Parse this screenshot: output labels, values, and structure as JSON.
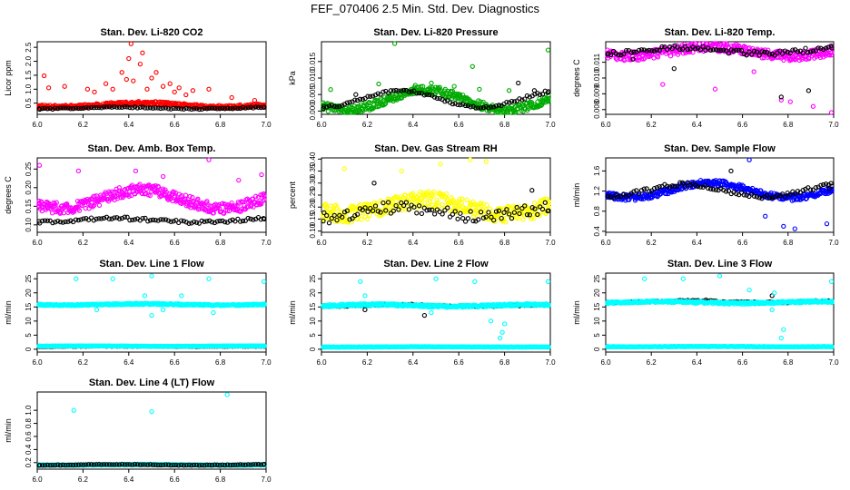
{
  "title": "FEF_070406  2.5 Min. Std. Dev. Diagnostics",
  "chart_data": [
    {
      "id": "co2",
      "type": "scatter",
      "title": "Stan. Dev. Li-820 CO2",
      "ylabel": "Licor ppm",
      "xlim": [
        6.0,
        7.0
      ],
      "ylim": [
        0.1,
        2.7
      ],
      "xticks": [
        6.0,
        6.2,
        6.4,
        6.6,
        6.8,
        7.0
      ],
      "yticks": [
        0.5,
        1.0,
        1.5,
        2.0,
        2.5
      ],
      "ytick_labels": [
        "0.5",
        "1.0",
        "1.5",
        "2.0",
        "2.5"
      ],
      "series": [
        {
          "name": "all",
          "color": "#ff0000",
          "base": 0.42,
          "amp": 0.07,
          "noise": 0.12,
          "spikes": [
            [
              6.03,
              1.48
            ],
            [
              6.05,
              1.05
            ],
            [
              6.12,
              1.1
            ],
            [
              6.22,
              1.0
            ],
            [
              6.25,
              0.9
            ],
            [
              6.3,
              1.2
            ],
            [
              6.33,
              1.0
            ],
            [
              6.37,
              1.6
            ],
            [
              6.39,
              1.35
            ],
            [
              6.4,
              2.1
            ],
            [
              6.41,
              2.63
            ],
            [
              6.42,
              1.3
            ],
            [
              6.45,
              1.9
            ],
            [
              6.46,
              2.3
            ],
            [
              6.48,
              1.0
            ],
            [
              6.5,
              1.4
            ],
            [
              6.52,
              1.6
            ],
            [
              6.55,
              1.1
            ],
            [
              6.58,
              1.2
            ],
            [
              6.6,
              0.9
            ],
            [
              6.62,
              1.05
            ],
            [
              6.65,
              0.8
            ],
            [
              6.68,
              0.95
            ],
            [
              6.75,
              1.0
            ],
            [
              6.85,
              0.7
            ],
            [
              6.95,
              0.6
            ]
          ]
        },
        {
          "name": "sel",
          "color": "#000000",
          "base": 0.32,
          "amp": 0.03,
          "noise": 0.04,
          "spikes": []
        }
      ]
    },
    {
      "id": "pres",
      "type": "scatter",
      "title": "Stan. Dev. Li-820 Pressure",
      "ylabel": "kPa",
      "xlim": [
        6.0,
        7.0
      ],
      "ylim": [
        -0.001,
        0.021
      ],
      "xticks": [
        6.0,
        6.2,
        6.4,
        6.6,
        6.8,
        7.0
      ],
      "yticks": [
        0.0,
        0.005,
        0.01,
        0.015
      ],
      "ytick_labels": [
        "0.000",
        "0.005",
        "0.010",
        "0.015"
      ],
      "series": [
        {
          "name": "all",
          "color": "#00aa00",
          "base": 0.003,
          "amp": 0.003,
          "noise": 0.0025,
          "spikes": [
            [
              6.32,
              0.0205
            ],
            [
              6.99,
              0.0185
            ],
            [
              6.66,
              0.0135
            ],
            [
              6.48,
              0.0085
            ],
            [
              6.25,
              0.0082
            ],
            [
              6.41,
              0.0078
            ],
            [
              6.04,
              0.0065
            ],
            [
              6.69,
              0.0066
            ],
            [
              6.82,
              0.0062
            ],
            [
              6.58,
              0.0075
            ]
          ]
        },
        {
          "name": "sel",
          "color": "#000000",
          "base": 0.0035,
          "amp": 0.0025,
          "noise": 0.0008,
          "spikes": [
            [
              6.86,
              0.0085
            ],
            [
              6.93,
              0.0062
            ],
            [
              6.15,
              0.005
            ]
          ]
        }
      ]
    },
    {
      "id": "temp",
      "type": "scatter",
      "title": "Stan. Dev. Li-820 Temp.",
      "ylabel": "degrees C",
      "xlim": [
        6.0,
        7.0
      ],
      "ylim": [
        0.0077,
        0.0123
      ],
      "xticks": [
        6.0,
        6.2,
        6.4,
        6.6,
        6.8,
        7.0
      ],
      "yticks": [
        0.008,
        0.009,
        0.01,
        0.011
      ],
      "ytick_labels": [
        "0.008",
        "0.009",
        "0.010",
        "0.011"
      ],
      "series": [
        {
          "name": "all",
          "color": "#ff00ff",
          "base": 0.0116,
          "amp": 0.0003,
          "noise": 0.0006,
          "spikes": [
            [
              6.99,
              0.0078
            ],
            [
              6.77,
              0.0086
            ],
            [
              6.81,
              0.0085
            ],
            [
              6.25,
              0.0096
            ],
            [
              6.48,
              0.0093
            ],
            [
              6.65,
              0.0104
            ],
            [
              6.91,
              0.0082
            ]
          ]
        },
        {
          "name": "sel",
          "color": "#000000",
          "base": 0.0117,
          "amp": 0.0002,
          "noise": 0.0003,
          "spikes": [
            [
              6.77,
              0.0088
            ],
            [
              6.89,
              0.0092
            ],
            [
              6.3,
              0.0106
            ],
            [
              6.12,
              0.0112
            ]
          ]
        }
      ]
    },
    {
      "id": "box",
      "type": "scatter",
      "title": "Stan. Dev. Amb. Box Temp.",
      "ylabel": "degrees C",
      "xlim": [
        6.0,
        7.0
      ],
      "ylim": [
        0.08,
        0.28
      ],
      "xticks": [
        6.0,
        6.2,
        6.4,
        6.6,
        6.8,
        7.0
      ],
      "yticks": [
        0.1,
        0.15,
        0.2,
        0.25
      ],
      "ytick_labels": [
        "0.10",
        "0.15",
        "0.20",
        "0.25"
      ],
      "series": [
        {
          "name": "all",
          "color": "#ff00ff",
          "base": 0.165,
          "amp": 0.025,
          "noise": 0.03,
          "spikes": [
            [
              6.75,
              0.275
            ],
            [
              6.01,
              0.26
            ],
            [
              6.18,
              0.245
            ],
            [
              6.43,
              0.245
            ],
            [
              6.55,
              0.23
            ],
            [
              6.88,
              0.22
            ],
            [
              6.98,
              0.235
            ]
          ]
        },
        {
          "name": "sel",
          "color": "#000000",
          "base": 0.111,
          "amp": 0.005,
          "noise": 0.008,
          "spikes": []
        }
      ]
    },
    {
      "id": "rh",
      "type": "scatter",
      "title": "Stan. Dev. Gas Stream RH",
      "ylabel": "percent",
      "xlim": [
        6.0,
        7.0
      ],
      "ylim": [
        0.095,
        0.405
      ],
      "xticks": [
        6.0,
        6.2,
        6.4,
        6.6,
        6.8,
        7.0
      ],
      "yticks": [
        0.1,
        0.15,
        0.2,
        0.25,
        0.3,
        0.35,
        0.4
      ],
      "ytick_labels": [
        "0.10",
        "0.15",
        "0.20",
        "0.25",
        "0.30",
        "0.35",
        "0.40"
      ],
      "series": [
        {
          "name": "all",
          "color": "#ffff00",
          "base": 0.19,
          "amp": 0.03,
          "noise": 0.07,
          "spikes": [
            [
              6.65,
              0.4
            ],
            [
              6.72,
              0.39
            ],
            [
              6.1,
              0.36
            ],
            [
              6.35,
              0.35
            ],
            [
              6.52,
              0.38
            ]
          ]
        },
        {
          "name": "sel",
          "color": "#000000",
          "base": 0.17,
          "amp": 0.02,
          "noise": 0.05,
          "spikes": [
            [
              6.23,
              0.3
            ],
            [
              6.92,
              0.27
            ]
          ]
        }
      ]
    },
    {
      "id": "flow",
      "type": "scatter",
      "title": "Stan. Dev. Sample Flow",
      "ylabel": "ml/min",
      "xlim": [
        6.0,
        7.0
      ],
      "ylim": [
        0.38,
        1.86
      ],
      "xticks": [
        6.0,
        6.2,
        6.4,
        6.6,
        6.8,
        7.0
      ],
      "yticks": [
        0.4,
        0.8,
        1.2,
        1.6
      ],
      "ytick_labels": [
        "0.4",
        "0.8",
        "1.2",
        "1.6"
      ],
      "series": [
        {
          "name": "all",
          "color": "#0000ff",
          "base": 1.2,
          "amp": 0.15,
          "noise": 0.12,
          "spikes": [
            [
              6.63,
              1.82
            ],
            [
              6.83,
              0.45
            ],
            [
              6.78,
              0.5
            ],
            [
              6.97,
              0.55
            ],
            [
              6.7,
              0.7
            ]
          ]
        },
        {
          "name": "sel",
          "color": "#000000",
          "base": 1.2,
          "amp": 0.12,
          "noise": 0.08,
          "spikes": [
            [
              6.98,
              1.25
            ],
            [
              6.55,
              1.6
            ]
          ]
        }
      ]
    },
    {
      "id": "l1",
      "type": "scatter",
      "title": "Stan. Dev. Line 1 Flow",
      "ylabel": "ml/min",
      "xlim": [
        6.0,
        7.0
      ],
      "ylim": [
        -1,
        27
      ],
      "xticks": [
        6.0,
        6.2,
        6.4,
        6.6,
        6.8,
        7.0
      ],
      "yticks": [
        0,
        5,
        10,
        15,
        20,
        25
      ],
      "ytick_labels": [
        "0",
        "5",
        "10",
        "15",
        "20",
        "25"
      ],
      "series": [
        {
          "name": "all",
          "color": "#00ffff",
          "base": 15.8,
          "amp": 0.2,
          "noise": 0.5,
          "spikes": [
            [
              6.17,
              25
            ],
            [
              6.33,
              25
            ],
            [
              6.5,
              26
            ],
            [
              6.75,
              25
            ],
            [
              6.99,
              24
            ],
            [
              6.47,
              19
            ],
            [
              6.63,
              19
            ],
            [
              6.5,
              12
            ],
            [
              6.77,
              13
            ],
            [
              6.26,
              14
            ],
            [
              6.55,
              14
            ]
          ]
        },
        {
          "name": "sel",
          "color": "#000000",
          "base": 1.0,
          "amp": 0.05,
          "noise": 0.15,
          "spikes": []
        },
        {
          "name": "low",
          "color": "#00ffff",
          "base": 1.1,
          "amp": 0.05,
          "noise": 0.1,
          "spikes": []
        }
      ]
    },
    {
      "id": "l2",
      "type": "scatter",
      "title": "Stan. Dev. Line 2 Flow",
      "ylabel": "ml/min",
      "xlim": [
        6.0,
        7.0
      ],
      "ylim": [
        -1,
        27
      ],
      "xticks": [
        6.0,
        6.2,
        6.4,
        6.6,
        6.8,
        7.0
      ],
      "yticks": [
        0,
        5,
        10,
        15,
        20,
        25
      ],
      "ytick_labels": [
        "0",
        "5",
        "10",
        "15",
        "20",
        "25"
      ],
      "series": [
        {
          "name": "all",
          "color": "#00ffff",
          "base": 0.8,
          "amp": 0.05,
          "noise": 0.2,
          "spikes": [
            [
              6.78,
              4
            ],
            [
              6.79,
              6
            ],
            [
              6.74,
              10
            ],
            [
              6.8,
              9
            ]
          ]
        },
        {
          "name": "sel",
          "color": "#000000",
          "base": 15.5,
          "amp": 0.3,
          "noise": 0.4,
          "spikes": [
            [
              6.45,
              12
            ],
            [
              6.19,
              14
            ]
          ]
        },
        {
          "name": "hi",
          "color": "#00ffff",
          "base": 15.4,
          "amp": 0.3,
          "noise": 0.8,
          "spikes": [
            [
              6.17,
              24
            ],
            [
              6.5,
              25
            ],
            [
              6.67,
              24
            ],
            [
              6.99,
              24
            ],
            [
              6.19,
              19
            ],
            [
              6.48,
              13
            ]
          ]
        }
      ]
    },
    {
      "id": "l3",
      "type": "scatter",
      "title": "Stan. Dev. Line 3 Flow",
      "ylabel": "ml/min",
      "xlim": [
        6.0,
        7.0
      ],
      "ylim": [
        -1,
        27
      ],
      "xticks": [
        6.0,
        6.2,
        6.4,
        6.6,
        6.8,
        7.0
      ],
      "yticks": [
        0,
        5,
        10,
        15,
        20,
        25
      ],
      "ytick_labels": [
        "0",
        "5",
        "10",
        "15",
        "20",
        "25"
      ],
      "series": [
        {
          "name": "all",
          "color": "#00ffff",
          "base": 0.9,
          "amp": 0.05,
          "noise": 0.2,
          "spikes": [
            [
              6.77,
              4
            ],
            [
              6.78,
              7
            ],
            [
              6.73,
              14
            ]
          ]
        },
        {
          "name": "sel",
          "color": "#000000",
          "base": 16.8,
          "amp": 0.3,
          "noise": 0.5,
          "spikes": [
            [
              6.73,
              19
            ],
            [
              6.44,
              17.5
            ]
          ]
        },
        {
          "name": "hi",
          "color": "#00ffff",
          "base": 16.5,
          "amp": 0.3,
          "noise": 0.7,
          "spikes": [
            [
              6.17,
              25
            ],
            [
              6.34,
              25
            ],
            [
              6.5,
              26
            ],
            [
              6.99,
              24
            ],
            [
              6.63,
              21
            ],
            [
              6.74,
              20
            ]
          ]
        }
      ]
    },
    {
      "id": "l4",
      "type": "scatter",
      "title": "Stan. Dev. Line 4 (LT) Flow",
      "ylabel": "ml/min",
      "xlim": [
        6.0,
        7.0
      ],
      "ylim": [
        0.1,
        1.28
      ],
      "xticks": [
        6.0,
        6.2,
        6.4,
        6.6,
        6.8,
        7.0
      ],
      "yticks": [
        0.2,
        0.4,
        0.6,
        0.8,
        1.0
      ],
      "ytick_labels": [
        "0.2",
        "0.4",
        "0.6",
        "0.8",
        "1.0"
      ],
      "series": [
        {
          "name": "all",
          "color": "#00ffff",
          "base": 0.165,
          "amp": 0.005,
          "noise": 0.01,
          "spikes": [
            [
              6.16,
              1.0
            ],
            [
              6.5,
              0.98
            ],
            [
              6.83,
              1.24
            ]
          ]
        },
        {
          "name": "sel",
          "color": "#000000",
          "base": 0.165,
          "amp": 0.005,
          "noise": 0.008,
          "spikes": []
        }
      ]
    }
  ]
}
